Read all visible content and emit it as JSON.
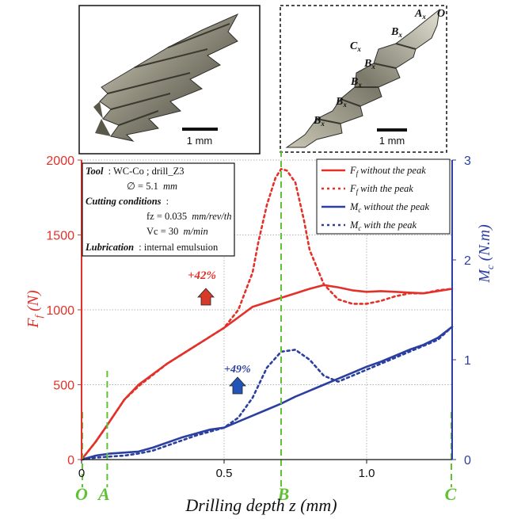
{
  "photos": {
    "left": {
      "scale_label": "1 mm"
    },
    "right": {
      "scale_label": "1 mm",
      "point_labels": [
        {
          "name": "A",
          "sub": "x"
        },
        {
          "name": "O",
          "sub": ""
        },
        {
          "name": "B",
          "sub": "x"
        },
        {
          "name": "C",
          "sub": "x"
        },
        {
          "name": "B",
          "sub": "x"
        },
        {
          "name": "B",
          "sub": "x"
        },
        {
          "name": "B",
          "sub": "x"
        },
        {
          "name": "B",
          "sub": "x"
        }
      ]
    }
  },
  "info_box": {
    "tool_label": "Tool",
    "tool_value": ": WC-Co ; drill_Z3",
    "diameter": "∅ = 5.1",
    "diameter_unit": "mm",
    "cutting_label": "Cutting conditions",
    "cutting_colon": ":",
    "fz": "fz = 0.035",
    "fz_unit": "mm/rev/th",
    "vc": "Vc = 30",
    "vc_unit": "m/min",
    "lubrication_label": "Lubrication",
    "lubrication_value": ": internal emulsuion"
  },
  "annotations": {
    "ff_increase": "+42%",
    "mc_increase": "+49%"
  },
  "colors": {
    "ff": "#e3312a",
    "mc": "#2b3fa0",
    "depth_markers": "#5ec234",
    "arrow_ff": "#d83a2a",
    "arrow_mc": "#2355b8"
  },
  "chart_data": {
    "type": "line",
    "x_axis": {
      "label": "Drilling depth z (mm)",
      "range": [
        0,
        1.3
      ],
      "ticks": [
        0,
        0.5,
        1.0
      ],
      "tick_labels": [
        "0",
        "0.5",
        "1.0"
      ]
    },
    "y_left": {
      "label_main": "F",
      "label_sub": "f",
      "label_unit": " (N)",
      "range": [
        0,
        2000
      ],
      "ticks": [
        0,
        500,
        1000,
        1500,
        2000
      ]
    },
    "y_right": {
      "label_main": "M",
      "label_sub": "c",
      "label_unit": " (N.m)",
      "range": [
        0,
        3
      ],
      "ticks": [
        0,
        1,
        2,
        3
      ]
    },
    "grid": true,
    "legend_position": "top-right",
    "depth_markers": [
      {
        "label": "O",
        "x": 0
      },
      {
        "label": "A",
        "x": 0.09
      },
      {
        "label": "B",
        "x": 0.7
      },
      {
        "label": "C",
        "x": 1.3
      }
    ],
    "series": [
      {
        "name": "without the peak",
        "name_main": "F",
        "name_sub": "f",
        "axis": "left",
        "style": "solid",
        "x": [
          0,
          0.05,
          0.09,
          0.15,
          0.2,
          0.3,
          0.4,
          0.5,
          0.55,
          0.6,
          0.65,
          0.7,
          0.75,
          0.8,
          0.85,
          0.9,
          0.95,
          1.0,
          1.05,
          1.1,
          1.15,
          1.2,
          1.25,
          1.3
        ],
        "y": [
          0,
          120,
          230,
          400,
          500,
          640,
          760,
          880,
          950,
          1020,
          1050,
          1080,
          1110,
          1140,
          1165,
          1150,
          1130,
          1120,
          1125,
          1120,
          1115,
          1110,
          1125,
          1140
        ]
      },
      {
        "name": "with the peak",
        "name_main": "F",
        "name_sub": "f",
        "axis": "left",
        "style": "dotted",
        "x": [
          0,
          0.05,
          0.09,
          0.15,
          0.2,
          0.3,
          0.4,
          0.5,
          0.55,
          0.6,
          0.62,
          0.65,
          0.68,
          0.7,
          0.72,
          0.75,
          0.78,
          0.8,
          0.85,
          0.9,
          0.95,
          1.0,
          1.05,
          1.1,
          1.15,
          1.2,
          1.25,
          1.3
        ],
        "y": [
          0,
          120,
          230,
          400,
          490,
          640,
          760,
          880,
          1000,
          1250,
          1450,
          1700,
          1880,
          1940,
          1930,
          1850,
          1600,
          1400,
          1170,
          1070,
          1040,
          1040,
          1060,
          1090,
          1110,
          1110,
          1130,
          1140
        ]
      },
      {
        "name": "without the peak",
        "name_main": "M",
        "name_sub": "c",
        "axis": "right",
        "style": "solid",
        "x": [
          0,
          0.05,
          0.1,
          0.15,
          0.2,
          0.25,
          0.3,
          0.35,
          0.4,
          0.45,
          0.5,
          0.55,
          0.6,
          0.65,
          0.7,
          0.75,
          0.8,
          0.85,
          0.9,
          0.95,
          1.0,
          1.05,
          1.1,
          1.15,
          1.2,
          1.25,
          1.3
        ],
        "y": [
          0,
          0.04,
          0.06,
          0.07,
          0.08,
          0.12,
          0.17,
          0.22,
          0.26,
          0.3,
          0.32,
          0.38,
          0.44,
          0.5,
          0.56,
          0.63,
          0.69,
          0.75,
          0.81,
          0.87,
          0.93,
          0.98,
          1.04,
          1.1,
          1.15,
          1.22,
          1.33
        ]
      },
      {
        "name": "with the peak",
        "name_main": "M",
        "name_sub": "c",
        "axis": "right",
        "style": "dotted",
        "x": [
          0,
          0.05,
          0.1,
          0.15,
          0.2,
          0.25,
          0.3,
          0.35,
          0.4,
          0.45,
          0.5,
          0.55,
          0.6,
          0.65,
          0.7,
          0.75,
          0.8,
          0.85,
          0.9,
          0.95,
          1.0,
          1.05,
          1.1,
          1.15,
          1.2,
          1.25,
          1.3
        ],
        "y": [
          0,
          0.02,
          0.03,
          0.04,
          0.06,
          0.09,
          0.14,
          0.19,
          0.24,
          0.28,
          0.32,
          0.42,
          0.62,
          0.92,
          1.08,
          1.1,
          1.0,
          0.84,
          0.78,
          0.84,
          0.9,
          0.96,
          1.02,
          1.08,
          1.14,
          1.2,
          1.33
        ]
      }
    ]
  }
}
